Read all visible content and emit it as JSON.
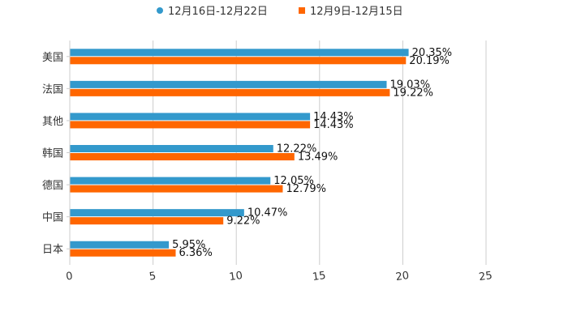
{
  "chart_data": {
    "type": "bar",
    "orientation": "horizontal",
    "title": "",
    "xlabel": "",
    "ylabel": "",
    "categories": [
      "美国",
      "法国",
      "其他",
      "韩国",
      "德国",
      "中国",
      "日本"
    ],
    "series": [
      {
        "name": "12月16日-12月22日",
        "color": "#3399cc",
        "values": [
          20.35,
          19.03,
          14.43,
          12.22,
          12.05,
          10.47,
          5.95
        ],
        "labels": [
          "20.35%",
          "19.03%",
          "14.43%",
          "12.22%",
          "12.05%",
          "10.47%",
          "5.95%"
        ]
      },
      {
        "name": "12月9日-12月15日",
        "color": "#ff6600",
        "values": [
          20.19,
          19.22,
          14.43,
          13.49,
          12.79,
          9.22,
          6.36
        ],
        "labels": [
          "20.19%",
          "19.22%",
          "14.43%",
          "13.49%",
          "12.79%",
          "9.22%",
          "6.36%"
        ]
      }
    ],
    "xlim": [
      0,
      25
    ],
    "xticks": [
      0,
      5,
      10,
      15,
      20,
      25
    ],
    "xtick_labels": [
      "0",
      "5",
      "10",
      "15",
      "20",
      "25"
    ],
    "grid": true,
    "legend_position": "top-center"
  }
}
